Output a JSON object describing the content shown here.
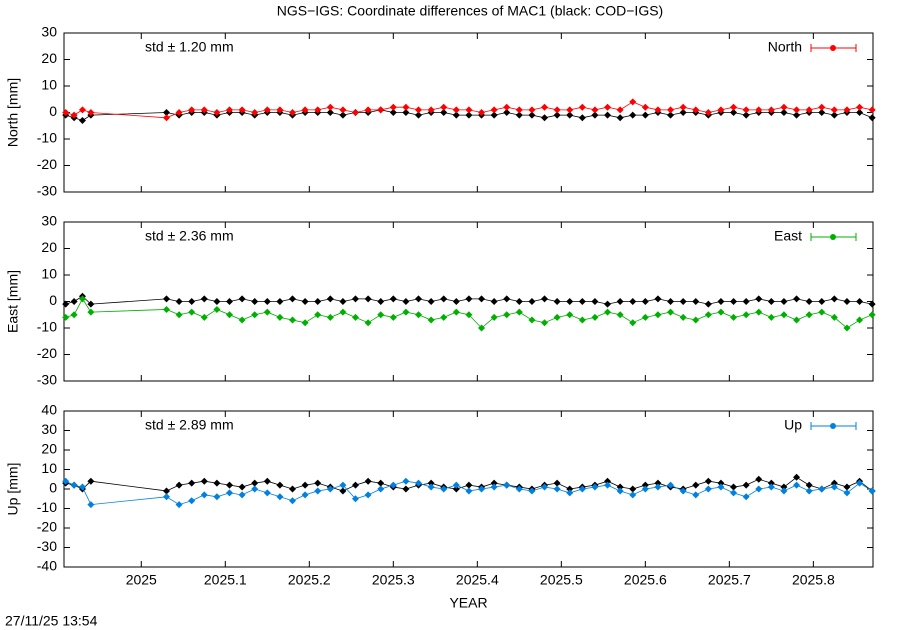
{
  "timestamp": "27/11/25 13:54",
  "chart_data": [
    {
      "type": "line",
      "title": "NGS−IGS: Coordinate differences of MAC1 (black: COD−IGS)",
      "ylabel": "North [mm]",
      "annotation": "std ± 1.20 mm",
      "annotation_color": "#ff0000",
      "legend": "upper right",
      "xlim": [
        2024.908,
        2025.871
      ],
      "ylim": [
        -30,
        30
      ],
      "yticks": [
        -30,
        -20,
        -10,
        0,
        10,
        20,
        30
      ],
      "x": [
        2024.91,
        2024.92,
        2024.93,
        2024.94,
        2025.03,
        2025.045,
        2025.06,
        2025.075,
        2025.09,
        2025.105,
        2025.12,
        2025.135,
        2025.15,
        2025.165,
        2025.18,
        2025.195,
        2025.21,
        2025.225,
        2025.24,
        2025.255,
        2025.27,
        2025.285,
        2025.3,
        2025.315,
        2025.33,
        2025.345,
        2025.36,
        2025.375,
        2025.39,
        2025.405,
        2025.42,
        2025.435,
        2025.45,
        2025.465,
        2025.48,
        2025.495,
        2025.51,
        2025.525,
        2025.54,
        2025.555,
        2025.57,
        2025.585,
        2025.6,
        2025.615,
        2025.63,
        2025.645,
        2025.66,
        2025.675,
        2025.69,
        2025.705,
        2025.72,
        2025.735,
        2025.75,
        2025.765,
        2025.78,
        2025.795,
        2025.81,
        2025.825,
        2025.84,
        2025.855,
        2025.87
      ],
      "series": [
        {
          "color": "#000000",
          "values": [
            -1,
            -2,
            -3,
            -1,
            0,
            -1,
            0,
            0,
            -1,
            0,
            0,
            -1,
            0,
            0,
            -1,
            0,
            0,
            0,
            -1,
            0,
            0,
            1,
            0,
            0,
            -1,
            0,
            0,
            -1,
            -1,
            -1,
            -1,
            0,
            -1,
            -1,
            -2,
            -1,
            -1,
            -2,
            -1,
            -1,
            -2,
            -1,
            -1,
            0,
            -1,
            0,
            0,
            -1,
            0,
            0,
            -1,
            0,
            0,
            0,
            -1,
            0,
            0,
            -1,
            0,
            0,
            -2
          ]
        },
        {
          "name": "North",
          "color": "#ff0000",
          "values": [
            0,
            -1,
            1,
            0,
            -2,
            0,
            1,
            1,
            0,
            1,
            1,
            0,
            1,
            1,
            0,
            1,
            1,
            2,
            1,
            0,
            1,
            1,
            2,
            2,
            1,
            1,
            2,
            1,
            1,
            0,
            1,
            2,
            1,
            1,
            2,
            1,
            1,
            2,
            1,
            2,
            1,
            4,
            2,
            1,
            1,
            2,
            1,
            0,
            1,
            2,
            1,
            1,
            1,
            2,
            1,
            1,
            2,
            1,
            1,
            2,
            1
          ]
        }
      ]
    },
    {
      "type": "line",
      "ylabel": "East [mm]",
      "annotation": "std ± 2.36 mm",
      "annotation_color": "#00b000",
      "legend": "upper right",
      "xlim": [
        2024.908,
        2025.871
      ],
      "ylim": [
        -30,
        30
      ],
      "yticks": [
        -30,
        -20,
        -10,
        0,
        10,
        20,
        30
      ],
      "x": [
        2024.91,
        2024.92,
        2024.93,
        2024.94,
        2025.03,
        2025.045,
        2025.06,
        2025.075,
        2025.09,
        2025.105,
        2025.12,
        2025.135,
        2025.15,
        2025.165,
        2025.18,
        2025.195,
        2025.21,
        2025.225,
        2025.24,
        2025.255,
        2025.27,
        2025.285,
        2025.3,
        2025.315,
        2025.33,
        2025.345,
        2025.36,
        2025.375,
        2025.39,
        2025.405,
        2025.42,
        2025.435,
        2025.45,
        2025.465,
        2025.48,
        2025.495,
        2025.51,
        2025.525,
        2025.54,
        2025.555,
        2025.57,
        2025.585,
        2025.6,
        2025.615,
        2025.63,
        2025.645,
        2025.66,
        2025.675,
        2025.69,
        2025.705,
        2025.72,
        2025.735,
        2025.75,
        2025.765,
        2025.78,
        2025.795,
        2025.81,
        2025.825,
        2025.84,
        2025.855,
        2025.87
      ],
      "series": [
        {
          "color": "#000000",
          "values": [
            -1,
            0,
            2,
            -1,
            1,
            0,
            0,
            1,
            0,
            0,
            1,
            0,
            0,
            0,
            1,
            0,
            0,
            1,
            0,
            1,
            1,
            0,
            1,
            0,
            1,
            0,
            1,
            0,
            1,
            1,
            0,
            1,
            0,
            0,
            1,
            0,
            0,
            0,
            0,
            -1,
            0,
            0,
            0,
            1,
            0,
            0,
            0,
            -1,
            0,
            0,
            0,
            1,
            0,
            0,
            1,
            0,
            0,
            1,
            0,
            0,
            -1
          ]
        },
        {
          "name": "East",
          "color": "#00b000",
          "values": [
            -6,
            -5,
            1,
            -4,
            -3,
            -5,
            -4,
            -6,
            -3,
            -5,
            -7,
            -5,
            -4,
            -6,
            -7,
            -8,
            -5,
            -6,
            -4,
            -6,
            -8,
            -5,
            -6,
            -4,
            -5,
            -7,
            -6,
            -4,
            -5,
            -10,
            -6,
            -5,
            -4,
            -7,
            -8,
            -6,
            -5,
            -7,
            -6,
            -4,
            -5,
            -8,
            -6,
            -5,
            -4,
            -6,
            -7,
            -5,
            -4,
            -6,
            -5,
            -4,
            -6,
            -5,
            -7,
            -5,
            -4,
            -6,
            -10,
            -7,
            -5
          ]
        }
      ]
    },
    {
      "type": "line",
      "ylabel": "Up [mm]",
      "xlabel": "YEAR",
      "annotation": "std ± 2.89 mm",
      "annotation_color": "#0080e0",
      "legend": "upper right",
      "xlim": [
        2024.908,
        2025.871
      ],
      "ylim": [
        -40,
        40
      ],
      "yticks": [
        -40,
        -30,
        -20,
        -10,
        0,
        10,
        20,
        30,
        40
      ],
      "xticks": [
        2025,
        2025.1,
        2025.2,
        2025.3,
        2025.4,
        2025.5,
        2025.6,
        2025.7,
        2025.8
      ],
      "x": [
        2024.91,
        2024.92,
        2024.93,
        2024.94,
        2025.03,
        2025.045,
        2025.06,
        2025.075,
        2025.09,
        2025.105,
        2025.12,
        2025.135,
        2025.15,
        2025.165,
        2025.18,
        2025.195,
        2025.21,
        2025.225,
        2025.24,
        2025.255,
        2025.27,
        2025.285,
        2025.3,
        2025.315,
        2025.33,
        2025.345,
        2025.36,
        2025.375,
        2025.39,
        2025.405,
        2025.42,
        2025.435,
        2025.45,
        2025.465,
        2025.48,
        2025.495,
        2025.51,
        2025.525,
        2025.54,
        2025.555,
        2025.57,
        2025.585,
        2025.6,
        2025.615,
        2025.63,
        2025.645,
        2025.66,
        2025.675,
        2025.69,
        2025.705,
        2025.72,
        2025.735,
        2025.75,
        2025.765,
        2025.78,
        2025.795,
        2025.81,
        2025.825,
        2025.84,
        2025.855,
        2025.87
      ],
      "series": [
        {
          "color": "#000000",
          "values": [
            3,
            2,
            0,
            4,
            -1,
            2,
            3,
            4,
            3,
            2,
            1,
            3,
            4,
            2,
            0,
            2,
            3,
            1,
            -1,
            2,
            4,
            3,
            1,
            0,
            2,
            3,
            1,
            0,
            2,
            1,
            3,
            2,
            1,
            0,
            2,
            3,
            0,
            1,
            2,
            4,
            1,
            0,
            2,
            3,
            1,
            0,
            2,
            4,
            3,
            1,
            2,
            5,
            3,
            1,
            6,
            2,
            0,
            3,
            1,
            4,
            -1
          ]
        },
        {
          "name": "Up",
          "color": "#0080e0",
          "values": [
            4,
            2,
            1,
            -8,
            -4,
            -8,
            -6,
            -3,
            -4,
            -2,
            -3,
            0,
            -2,
            -4,
            -6,
            -3,
            -1,
            0,
            2,
            -5,
            -3,
            0,
            2,
            4,
            3,
            1,
            0,
            2,
            -1,
            0,
            1,
            2,
            0,
            -1,
            1,
            0,
            -2,
            0,
            1,
            2,
            -1,
            -3,
            0,
            1,
            2,
            -1,
            -3,
            0,
            1,
            -2,
            -4,
            0,
            1,
            -1,
            2,
            -1,
            0,
            1,
            -2,
            3,
            -1
          ]
        }
      ]
    }
  ]
}
